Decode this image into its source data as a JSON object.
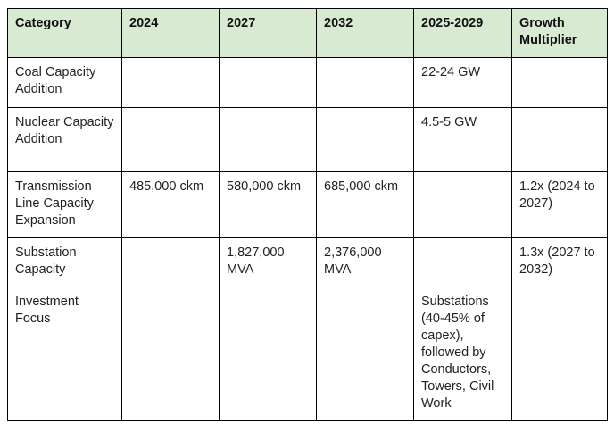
{
  "columns": [
    "Category",
    "2024",
    "2027",
    "2032",
    "2025-2029",
    "Growth Multiplier"
  ],
  "rows": [
    {
      "category": "Coal Capacity Addition",
      "y2024": "",
      "y2027": "",
      "y2032": "",
      "y2025_2029": "22-24 GW",
      "growth": ""
    },
    {
      "category": "Nuclear Capacity Addition",
      "y2024": "",
      "y2027": "",
      "y2032": "",
      "y2025_2029": "4.5-5 GW",
      "growth": ""
    },
    {
      "category": "Transmission Line Capacity Expansion",
      "y2024": "485,000 ckm",
      "y2027": "580,000 ckm",
      "y2032": "685,000 ckm",
      "y2025_2029": "",
      "growth": "1.2x (2024 to 2027)"
    },
    {
      "category": "Substation Capacity",
      "y2024": "",
      "y2027": "1,827,000 MVA",
      "y2032": "2,376,000 MVA",
      "y2025_2029": "",
      "growth": "1.3x (2027 to 2032)"
    },
    {
      "category": "Investment Focus",
      "y2024": "",
      "y2027": "",
      "y2032": "",
      "y2025_2029": "Substations (40-45% of capex), followed by Conductors, Towers, Civil Work",
      "growth": ""
    }
  ]
}
